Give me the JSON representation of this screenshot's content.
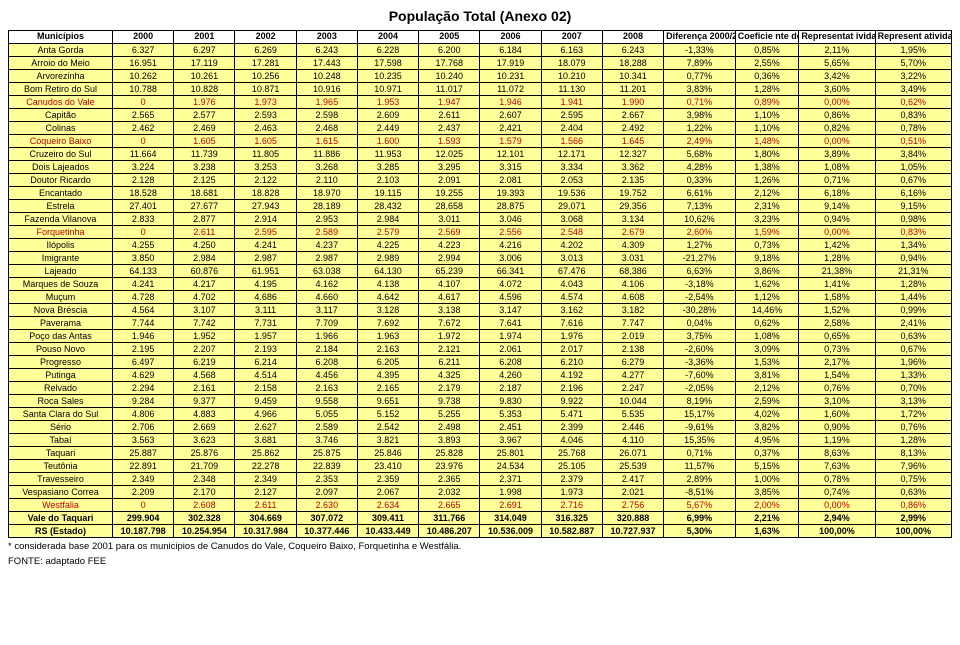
{
  "title": "População Total (Anexo 02)",
  "columns": [
    "Municípios",
    "2000",
    "2001",
    "2002",
    "2003",
    "2004",
    "2005",
    "2006",
    "2007",
    "2008",
    "Diferença 2000/2008*",
    "Coeficie nte de Variaçã o %*",
    "Representat ividade 2000",
    "Represent atividade 2008"
  ],
  "footnote1": "* considerada base 2001 para os municipios de Canudos do Vale, Coqueiro Baixo, Forquetinha e Westfália.",
  "footnote2": "FONTE: adaptado FEE",
  "rows": [
    {
      "style": "normal",
      "cells": [
        "Anta Gorda",
        "6.327",
        "6.297",
        "6.269",
        "6.243",
        "6.228",
        "6.200",
        "6.184",
        "6.163",
        "6.243",
        "-1,33%",
        "0,85%",
        "2,11%",
        "1,95%"
      ]
    },
    {
      "style": "normal",
      "cells": [
        "Arroio do Meio",
        "16.951",
        "17.119",
        "17.281",
        "17.443",
        "17.598",
        "17.768",
        "17.919",
        "18.079",
        "18.288",
        "7,89%",
        "2,55%",
        "5,65%",
        "5,70%"
      ]
    },
    {
      "style": "normal",
      "cells": [
        "Arvorezinha",
        "10.262",
        "10.261",
        "10.256",
        "10.248",
        "10.235",
        "10.240",
        "10.231",
        "10.210",
        "10.341",
        "0,77%",
        "0,36%",
        "3,42%",
        "3,22%"
      ]
    },
    {
      "style": "normal",
      "cells": [
        "Bom Retiro do Sul",
        "10.788",
        "10.828",
        "10.871",
        "10.916",
        "10.971",
        "11.017",
        "11.072",
        "11.130",
        "11.201",
        "3,83%",
        "1,28%",
        "3,60%",
        "3,49%"
      ]
    },
    {
      "style": "red",
      "cells": [
        "Canudos do Vale",
        "0",
        "1.976",
        "1.973",
        "1.965",
        "1.953",
        "1.947",
        "1.946",
        "1.941",
        "1.990",
        "0,71%",
        "0,89%",
        "0,00%",
        "0,62%"
      ]
    },
    {
      "style": "normal",
      "cells": [
        "Capitão",
        "2.565",
        "2.577",
        "2.593",
        "2.598",
        "2.609",
        "2.611",
        "2.607",
        "2.595",
        "2.667",
        "3,98%",
        "1,10%",
        "0,86%",
        "0,83%"
      ]
    },
    {
      "style": "normal",
      "cells": [
        "Colinas",
        "2.462",
        "2.469",
        "2.463",
        "2.468",
        "2.449",
        "2.437",
        "2.421",
        "2.404",
        "2.492",
        "1,22%",
        "1,10%",
        "0,82%",
        "0,78%"
      ]
    },
    {
      "style": "red",
      "cells": [
        "Coqueiro Baixo",
        "0",
        "1.605",
        "1.605",
        "1.615",
        "1.600",
        "1.593",
        "1.579",
        "1.566",
        "1.645",
        "2,49%",
        "1,48%",
        "0,00%",
        "0,51%"
      ]
    },
    {
      "style": "normal",
      "cells": [
        "Cruzeiro do Sul",
        "11.664",
        "11.739",
        "11.805",
        "11.886",
        "11.953",
        "12.025",
        "12.101",
        "12.171",
        "12.327",
        "5,68%",
        "1,80%",
        "3,89%",
        "3,84%"
      ]
    },
    {
      "style": "normal",
      "cells": [
        "Dois Lajeados",
        "3.224",
        "3.238",
        "3.253",
        "3.268",
        "3.285",
        "3.295",
        "3.315",
        "3.334",
        "3.362",
        "4,28%",
        "1,38%",
        "1,08%",
        "1,05%"
      ]
    },
    {
      "style": "normal",
      "cells": [
        "Doutor Ricardo",
        "2.128",
        "2.125",
        "2.122",
        "2.110",
        "2.103",
        "2.091",
        "2.081",
        "2.053",
        "2.135",
        "0,33%",
        "1,26%",
        "0,71%",
        "0,67%"
      ]
    },
    {
      "style": "normal",
      "cells": [
        "Encantado",
        "18.528",
        "18.681",
        "18.828",
        "18.970",
        "19.115",
        "19.255",
        "19.393",
        "19.536",
        "19.752",
        "6,61%",
        "2,12%",
        "6,18%",
        "6,16%"
      ]
    },
    {
      "style": "normal",
      "cells": [
        "Estrela",
        "27.401",
        "27.677",
        "27.943",
        "28.189",
        "28.432",
        "28.658",
        "28.875",
        "29.071",
        "29.356",
        "7,13%",
        "2,31%",
        "9,14%",
        "9,15%"
      ]
    },
    {
      "style": "normal",
      "cells": [
        "Fazenda Vilanova",
        "2.833",
        "2.877",
        "2.914",
        "2.953",
        "2.984",
        "3.011",
        "3.046",
        "3.068",
        "3.134",
        "10,62%",
        "3,23%",
        "0,94%",
        "0,98%"
      ]
    },
    {
      "style": "red",
      "cells": [
        "Forquetinha",
        "0",
        "2.611",
        "2.595",
        "2.589",
        "2.579",
        "2.569",
        "2.556",
        "2.548",
        "2.679",
        "2,60%",
        "1,59%",
        "0,00%",
        "0,83%"
      ]
    },
    {
      "style": "normal",
      "cells": [
        "Ilópolis",
        "4.255",
        "4.250",
        "4.241",
        "4.237",
        "4.225",
        "4.223",
        "4.216",
        "4.202",
        "4.309",
        "1,27%",
        "0,73%",
        "1,42%",
        "1,34%"
      ]
    },
    {
      "style": "normal",
      "cells": [
        "Imigrante",
        "3.850",
        "2.984",
        "2.987",
        "2.987",
        "2.989",
        "2.994",
        "3.006",
        "3.013",
        "3.031",
        "-21,27%",
        "9,18%",
        "1,28%",
        "0,94%"
      ]
    },
    {
      "style": "normal",
      "cells": [
        "Lajeado",
        "64.133",
        "60.876",
        "61.951",
        "63.038",
        "64.130",
        "65.239",
        "66.341",
        "67.476",
        "68.386",
        "6,63%",
        "3,86%",
        "21,38%",
        "21,31%"
      ]
    },
    {
      "style": "normal",
      "cells": [
        "Marques de Souza",
        "4.241",
        "4.217",
        "4.195",
        "4.162",
        "4.138",
        "4.107",
        "4.072",
        "4.043",
        "4.106",
        "-3,18%",
        "1,62%",
        "1,41%",
        "1,28%"
      ]
    },
    {
      "style": "normal",
      "cells": [
        "Muçum",
        "4.728",
        "4.702",
        "4.686",
        "4.660",
        "4.642",
        "4.617",
        "4.596",
        "4.574",
        "4.608",
        "-2,54%",
        "1,12%",
        "1,58%",
        "1,44%"
      ]
    },
    {
      "style": "normal",
      "cells": [
        "Nova Bréscia",
        "4.564",
        "3.107",
        "3.111",
        "3.117",
        "3.128",
        "3.138",
        "3.147",
        "3.162",
        "3.182",
        "-30,28%",
        "14,46%",
        "1,52%",
        "0,99%"
      ]
    },
    {
      "style": "normal",
      "cells": [
        "Paverama",
        "7.744",
        "7.742",
        "7.731",
        "7.709",
        "7.692",
        "7.672",
        "7.641",
        "7.616",
        "7.747",
        "0,04%",
        "0,62%",
        "2,58%",
        "2,41%"
      ]
    },
    {
      "style": "normal",
      "cells": [
        "Poço das Antas",
        "1.946",
        "1.952",
        "1.957",
        "1.966",
        "1.963",
        "1.972",
        "1.974",
        "1.976",
        "2.019",
        "3,75%",
        "1,08%",
        "0,65%",
        "0,63%"
      ]
    },
    {
      "style": "normal",
      "cells": [
        "Pouso Novo",
        "2.195",
        "2.207",
        "2.193",
        "2.184",
        "2.163",
        "2.121",
        "2.061",
        "2.017",
        "2.138",
        "-2,60%",
        "3,09%",
        "0,73%",
        "0,67%"
      ]
    },
    {
      "style": "normal",
      "cells": [
        "Progresso",
        "6.497",
        "6.219",
        "6.214",
        "6.208",
        "6.205",
        "6.211",
        "6.208",
        "6.210",
        "6.279",
        "-3,36%",
        "1,53%",
        "2,17%",
        "1,96%"
      ]
    },
    {
      "style": "normal",
      "cells": [
        "Putinga",
        "4.629",
        "4.568",
        "4.514",
        "4.456",
        "4.395",
        "4.325",
        "4.260",
        "4.192",
        "4.277",
        "-7,60%",
        "3,81%",
        "1,54%",
        "1,33%"
      ]
    },
    {
      "style": "normal",
      "cells": [
        "Relvado",
        "2.294",
        "2.161",
        "2.158",
        "2.163",
        "2.165",
        "2.179",
        "2.187",
        "2.196",
        "2.247",
        "-2,05%",
        "2,12%",
        "0,76%",
        "0,70%"
      ]
    },
    {
      "style": "normal",
      "cells": [
        "Roca Sales",
        "9.284",
        "9.377",
        "9.459",
        "9.558",
        "9.651",
        "9.738",
        "9.830",
        "9.922",
        "10.044",
        "8,19%",
        "2,59%",
        "3,10%",
        "3,13%"
      ]
    },
    {
      "style": "normal",
      "cells": [
        "Santa Clara do Sul",
        "4.806",
        "4.883",
        "4.966",
        "5.055",
        "5.152",
        "5.255",
        "5.353",
        "5.471",
        "5.535",
        "15,17%",
        "4,02%",
        "1,60%",
        "1,72%"
      ]
    },
    {
      "style": "normal",
      "cells": [
        "Sério",
        "2.706",
        "2.669",
        "2.627",
        "2.589",
        "2.542",
        "2.498",
        "2.451",
        "2.399",
        "2.446",
        "-9,61%",
        "3,82%",
        "0,90%",
        "0,76%"
      ]
    },
    {
      "style": "normal",
      "cells": [
        "Tabaí",
        "3.563",
        "3.623",
        "3.681",
        "3.746",
        "3.821",
        "3.893",
        "3.967",
        "4.046",
        "4.110",
        "15,35%",
        "4,95%",
        "1,19%",
        "1,28%"
      ]
    },
    {
      "style": "normal",
      "cells": [
        "Taquari",
        "25.887",
        "25.876",
        "25.862",
        "25.875",
        "25.846",
        "25.828",
        "25.801",
        "25.768",
        "26.071",
        "0,71%",
        "0,37%",
        "8,63%",
        "8,13%"
      ]
    },
    {
      "style": "normal",
      "cells": [
        "Teutônia",
        "22.891",
        "21.709",
        "22.278",
        "22.839",
        "23.410",
        "23.976",
        "24.534",
        "25.105",
        "25.539",
        "11,57%",
        "5,15%",
        "7,63%",
        "7,96%"
      ]
    },
    {
      "style": "normal",
      "cells": [
        "Travesseiro",
        "2.349",
        "2.348",
        "2.349",
        "2.353",
        "2.359",
        "2.365",
        "2.371",
        "2.379",
        "2.417",
        "2,89%",
        "1,00%",
        "0,78%",
        "0,75%"
      ]
    },
    {
      "style": "normal",
      "cells": [
        "Vespasiano Correa",
        "2.209",
        "2.170",
        "2.127",
        "2.097",
        "2.067",
        "2.032",
        "1.998",
        "1.973",
        "2.021",
        "-8,51%",
        "3,85%",
        "0,74%",
        "0,63%"
      ]
    },
    {
      "style": "red",
      "cells": [
        "Westfalia",
        "0",
        "2.608",
        "2.611",
        "2.630",
        "2.634",
        "2.665",
        "2.691",
        "2.716",
        "2.756",
        "5,67%",
        "2,00%",
        "0,00%",
        "0,86%"
      ]
    },
    {
      "style": "bold",
      "cells": [
        "Vale do Taquari",
        "299.904",
        "302.328",
        "304.669",
        "307.072",
        "309.411",
        "311.766",
        "314.049",
        "316.325",
        "320.888",
        "6,99%",
        "2,21%",
        "2,94%",
        "2,99%"
      ]
    },
    {
      "style": "bold",
      "cells": [
        "RS (Estado)",
        "10.187.798",
        "10.254.954",
        "10.317.984",
        "10.377.446",
        "10.433.449",
        "10.486.207",
        "10.536.009",
        "10.582.887",
        "10.727.937",
        "5,30%",
        "1,63%",
        "100,00%",
        "100,00%"
      ]
    }
  ]
}
